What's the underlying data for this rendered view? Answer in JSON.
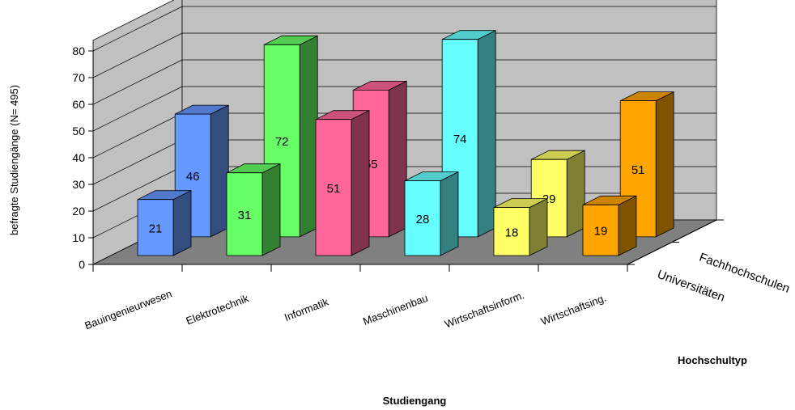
{
  "chart_data": {
    "type": "bar",
    "variant": "3d-clustered-depth",
    "categories": [
      "Bauingenieurwesen",
      "Elektrotechnik",
      "Informatik",
      "Maschinenbau",
      "Wirtschaftsinform.",
      "Wirtschaftsing."
    ],
    "series": [
      {
        "name": "Universitäten",
        "values": [
          21,
          31,
          51,
          28,
          18,
          19
        ]
      },
      {
        "name": "Fachhochschulen",
        "values": [
          46,
          72,
          55,
          74,
          29,
          51
        ]
      }
    ],
    "category_colors": [
      "#6699ff",
      "#66ff66",
      "#ff6699",
      "#66ffff",
      "#ffff66",
      "#ffa500"
    ],
    "xlabel": "Studiengang",
    "ylabel": "befragte Studiengänge (N= 495)",
    "zlabel": "Hochschultyp",
    "yticks": [
      "0",
      "10",
      "20",
      "30",
      "40",
      "50",
      "60",
      "70",
      "80"
    ],
    "ylim": [
      0,
      80
    ],
    "grid": true,
    "wall_color": "#c0c0c0",
    "floor_color": "#808080"
  }
}
